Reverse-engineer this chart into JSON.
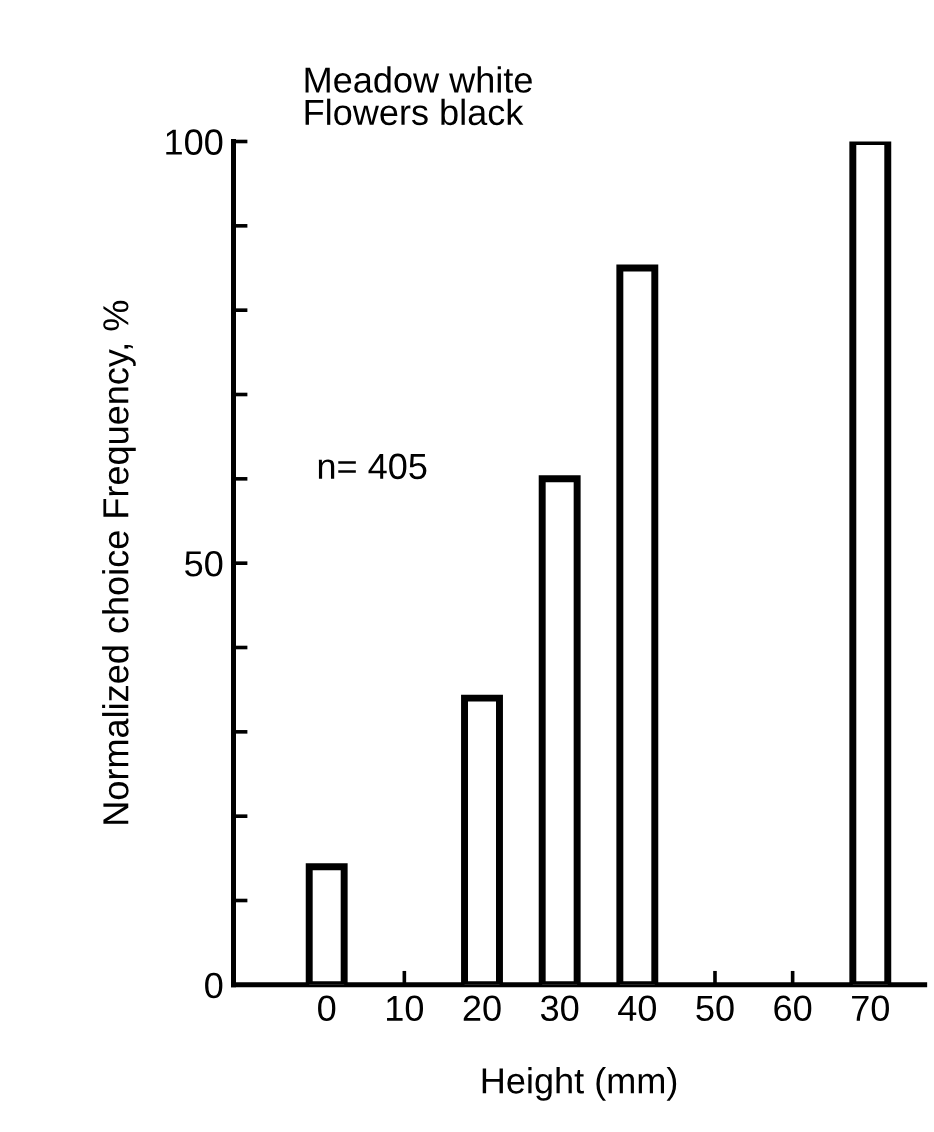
{
  "chart_data": {
    "type": "bar",
    "title": "Meadow white\nFlowers black",
    "xlabel": "Height (mm)",
    "ylabel": "Normalized choice Frequency, %",
    "categories": [
      "0",
      "10",
      "20",
      "30",
      "40",
      "50",
      "60",
      "70"
    ],
    "values": [
      14,
      null,
      34,
      60,
      85,
      null,
      null,
      100
    ],
    "color": "#ffffff",
    "ylim": [
      0,
      100
    ],
    "yticks": [
      0,
      {
        "value": 10,
        "label": null
      },
      {
        "value": 20,
        "label": null
      },
      {
        "value": 30,
        "label": null
      },
      {
        "value": 40,
        "label": null
      },
      50,
      {
        "value": 60,
        "label": null
      },
      {
        "value": 70,
        "label": null
      },
      {
        "value": 80,
        "label": null
      },
      {
        "value": 90,
        "label": null
      },
      100
    ],
    "annotations": [
      "n= 405"
    ],
    "grid": false
  }
}
